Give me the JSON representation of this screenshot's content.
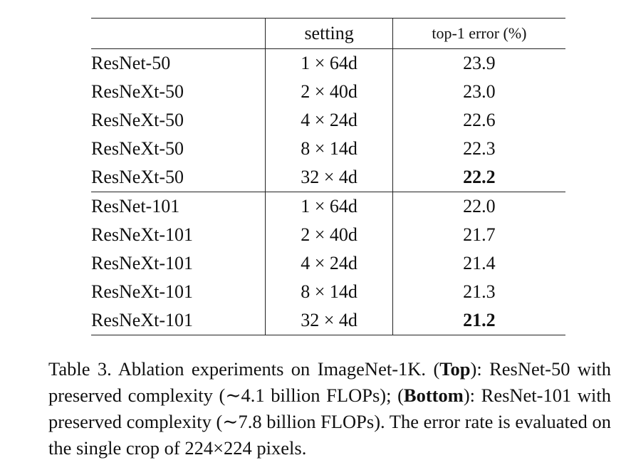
{
  "table": {
    "headers": {
      "model": "",
      "setting": "setting",
      "error": "top-1 error (%)"
    },
    "rows": [
      {
        "model": "ResNet-50",
        "setting": "1 × 64d",
        "error": "23.9",
        "bold": false
      },
      {
        "model": "ResNeXt-50",
        "setting": "2 × 40d",
        "error": "23.0",
        "bold": false
      },
      {
        "model": "ResNeXt-50",
        "setting": "4 × 24d",
        "error": "22.6",
        "bold": false
      },
      {
        "model": "ResNeXt-50",
        "setting": "8 × 14d",
        "error": "22.3",
        "bold": false
      },
      {
        "model": "ResNeXt-50",
        "setting": "32 × 4d",
        "error": "22.2",
        "bold": true
      },
      {
        "model": "ResNet-101",
        "setting": "1 × 64d",
        "error": "22.0",
        "bold": false
      },
      {
        "model": "ResNeXt-101",
        "setting": "2 × 40d",
        "error": "21.7",
        "bold": false
      },
      {
        "model": "ResNeXt-101",
        "setting": "4 × 24d",
        "error": "21.4",
        "bold": false
      },
      {
        "model": "ResNeXt-101",
        "setting": "8 × 14d",
        "error": "21.3",
        "bold": false
      },
      {
        "model": "ResNeXt-101",
        "setting": "32 × 4d",
        "error": "21.2",
        "bold": true
      }
    ]
  },
  "caption": {
    "part1": "Table 3. Ablation experiments on ImageNet-1K. (",
    "top_label": "Top",
    "part2": "): ResNet-50 with preserved complexity (∼4.1 billion FLOPs); (",
    "bottom_label": "Bottom",
    "part3": "): ResNet-101 with preserved complexity (∼7.8 billion FLOPs). The error rate is evaluated on the single crop of 224×224 pixels."
  }
}
